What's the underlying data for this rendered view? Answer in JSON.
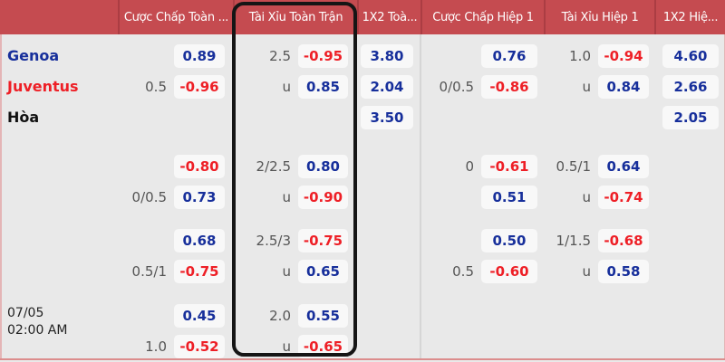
{
  "header": {
    "columns": [
      "",
      "Cược Chấp Toàn ...",
      "Tài Xỉu Toàn Trận",
      "1X2 Toà...",
      "Cược Chấp Hiệp 1",
      "Tài Xỉu Hiệp 1",
      "1X2 Hiệ..."
    ],
    "highlighted_column": "Tài Xỉu Toàn Trận"
  },
  "teams": {
    "home": {
      "name": "Genoa"
    },
    "away": {
      "name": "Juventus"
    },
    "draw": {
      "name": "Hòa"
    }
  },
  "datetime": {
    "date": "07/05",
    "time": "02:00 AM"
  },
  "colors": {
    "header_bg": "#c54b50",
    "header_sep": "#ab3d43",
    "header_text": "#ffffff",
    "body_bg": "#e9e9e9",
    "chip_bg": "#f8f8f8",
    "odds_blue": "#172f9b",
    "odds_red": "#ee1f26",
    "label_gray": "#555555",
    "box_border": "#151515",
    "bottom_line": "#dc8d8d"
  },
  "blocks": [
    {
      "rows": [
        {
          "team": "home",
          "cells": {
            "hdp_ft": {
              "odds": "0.89"
            },
            "ou_ft": {
              "label": "2.5",
              "odds": "-0.95"
            },
            "x12_ft": {
              "odds": "3.80"
            },
            "hdp_h1": {
              "odds": "0.76"
            },
            "ou_h1": {
              "label": "1.0",
              "odds": "-0.94"
            },
            "x12_h1": {
              "odds": "4.60"
            }
          }
        },
        {
          "team": "away",
          "cells": {
            "hdp_ft": {
              "label": "0.5",
              "odds": "-0.96"
            },
            "ou_ft": {
              "label": "u",
              "odds": "0.85"
            },
            "x12_ft": {
              "odds": "2.04"
            },
            "hdp_h1": {
              "label": "0/0.5",
              "odds": "-0.86"
            },
            "ou_h1": {
              "label": "u",
              "odds": "0.84"
            },
            "x12_h1": {
              "odds": "2.66"
            }
          }
        },
        {
          "team": "draw",
          "cells": {
            "x12_ft": {
              "odds": "3.50"
            },
            "x12_h1": {
              "odds": "2.05"
            }
          }
        }
      ]
    },
    {
      "rows": [
        {
          "cells": {
            "hdp_ft": {
              "odds": "-0.80"
            },
            "ou_ft": {
              "label": "2/2.5",
              "odds": "0.80"
            },
            "hdp_h1": {
              "label": "0",
              "odds": "-0.61"
            },
            "ou_h1": {
              "label": "0.5/1",
              "odds": "0.64"
            }
          }
        },
        {
          "cells": {
            "hdp_ft": {
              "label": "0/0.5",
              "odds": "0.73"
            },
            "ou_ft": {
              "label": "u",
              "odds": "-0.90"
            },
            "hdp_h1": {
              "odds": "0.51"
            },
            "ou_h1": {
              "label": "u",
              "odds": "-0.74"
            }
          }
        }
      ]
    },
    {
      "rows": [
        {
          "cells": {
            "hdp_ft": {
              "odds": "0.68"
            },
            "ou_ft": {
              "label": "2.5/3",
              "odds": "-0.75"
            },
            "hdp_h1": {
              "odds": "0.50"
            },
            "ou_h1": {
              "label": "1/1.5",
              "odds": "-0.68"
            }
          }
        },
        {
          "cells": {
            "hdp_ft": {
              "label": "0.5/1",
              "odds": "-0.75"
            },
            "ou_ft": {
              "label": "u",
              "odds": "0.65"
            },
            "hdp_h1": {
              "label": "0.5",
              "odds": "-0.60"
            },
            "ou_h1": {
              "label": "u",
              "odds": "0.58"
            }
          }
        }
      ]
    },
    {
      "show_datetime": true,
      "rows": [
        {
          "cells": {
            "hdp_ft": {
              "odds": "0.45"
            },
            "ou_ft": {
              "label": "2.0",
              "odds": "0.55"
            }
          }
        },
        {
          "cells": {
            "hdp_ft": {
              "label": "1.0",
              "odds": "-0.52"
            },
            "ou_ft": {
              "label": "u",
              "odds": "-0.65"
            }
          }
        }
      ]
    }
  ]
}
